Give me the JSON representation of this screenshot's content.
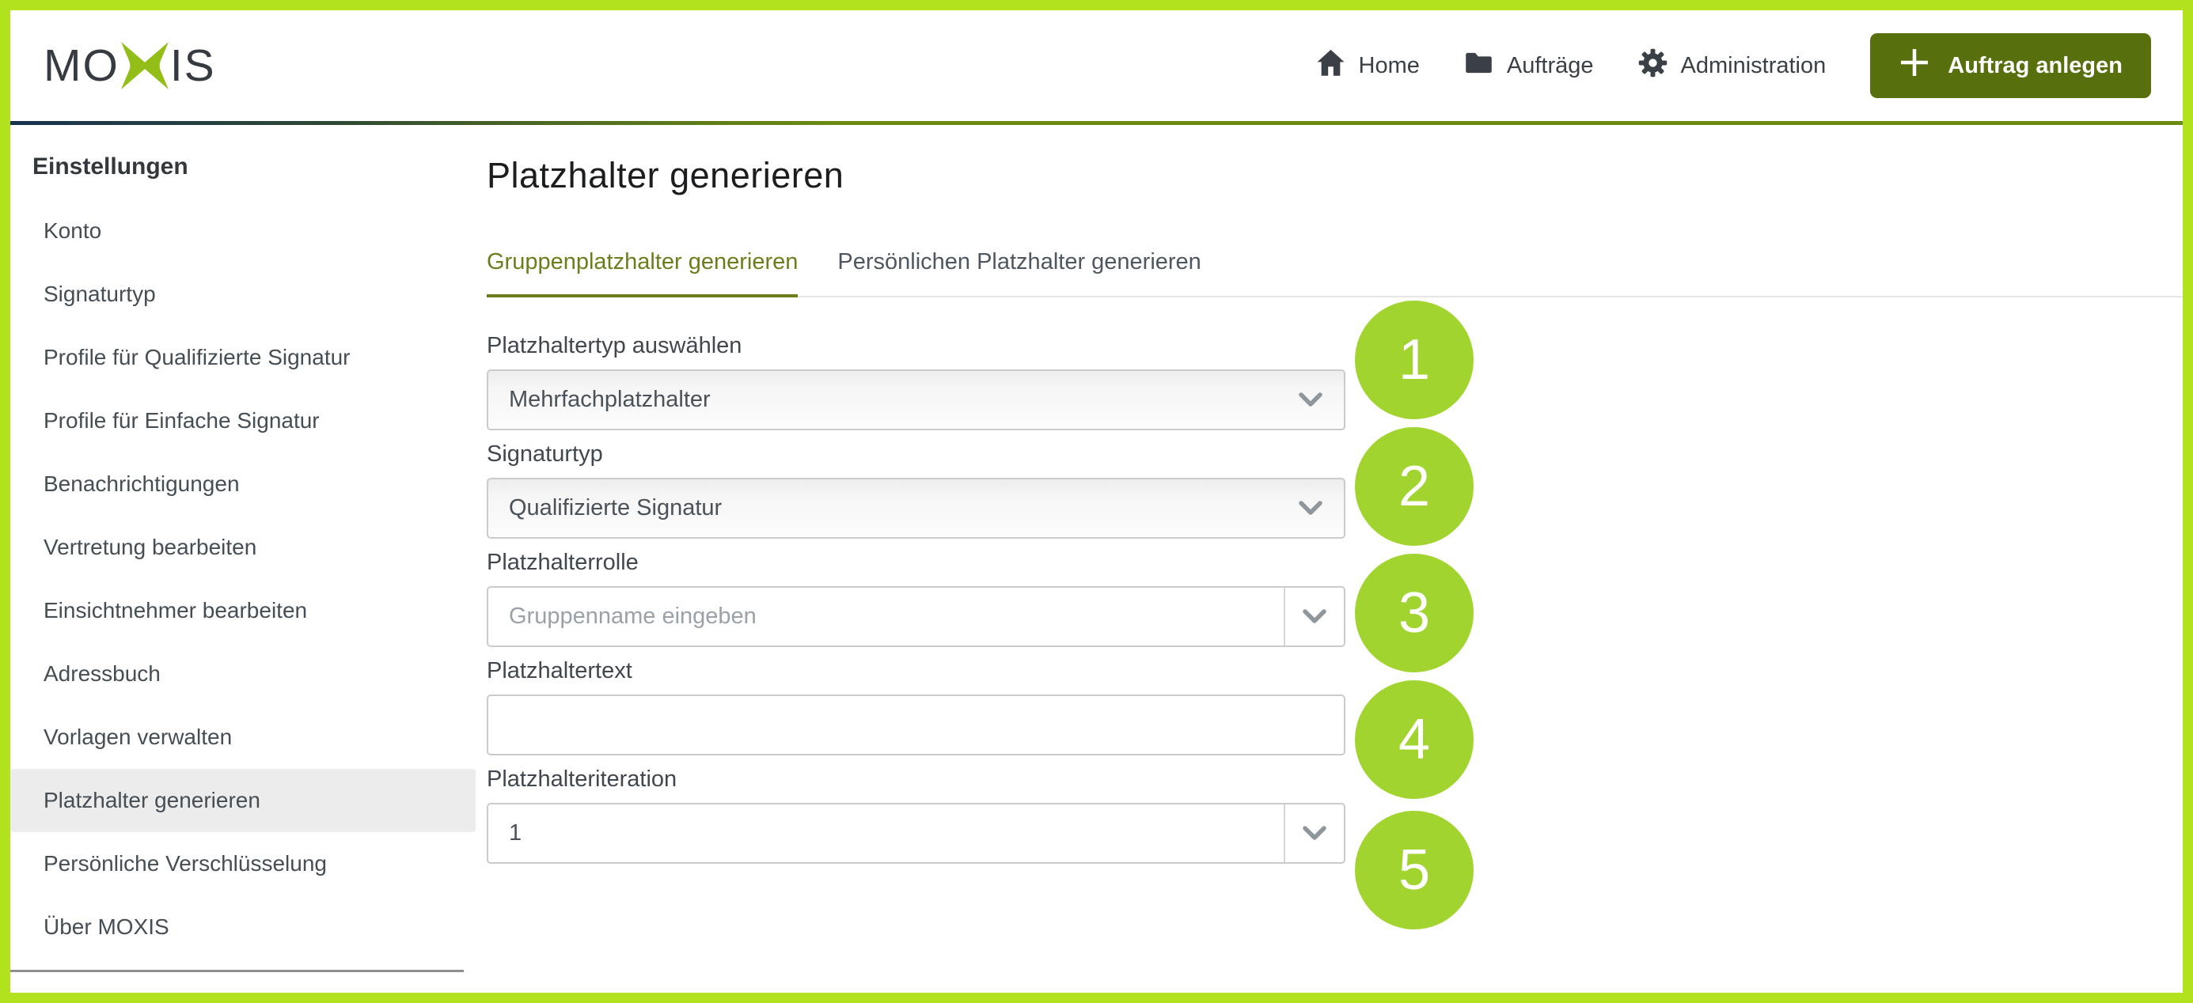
{
  "header": {
    "logo": {
      "left": "MO",
      "right": "IS",
      "icon": "moxis-x-icon"
    },
    "nav": [
      {
        "name": "home",
        "icon": "home-icon",
        "label": "Home"
      },
      {
        "name": "auftraege",
        "icon": "folder-icon",
        "label": "Aufträge"
      },
      {
        "name": "administration",
        "icon": "gear-icon",
        "label": "Administration"
      }
    ],
    "create_button": {
      "label": "Auftrag anlegen",
      "icon": "plus-icon"
    }
  },
  "sidebar": {
    "heading": "Einstellungen",
    "items": [
      {
        "name": "konto",
        "label": "Konto",
        "selected": false
      },
      {
        "name": "signaturtyp",
        "label": "Signaturtyp",
        "selected": false
      },
      {
        "name": "profile-qualifizierte-signatur",
        "label": "Profile für Qualifizierte Signatur",
        "selected": false
      },
      {
        "name": "profile-einfache-signatur",
        "label": "Profile für Einfache Signatur",
        "selected": false
      },
      {
        "name": "benachrichtigungen",
        "label": "Benachrichtigungen",
        "selected": false
      },
      {
        "name": "vertretung-bearbeiten",
        "label": "Vertretung bearbeiten",
        "selected": false
      },
      {
        "name": "einsichtnehmer-bearbeiten",
        "label": "Einsichtnehmer bearbeiten",
        "selected": false
      },
      {
        "name": "adressbuch",
        "label": "Adressbuch",
        "selected": false
      },
      {
        "name": "vorlagen-verwalten",
        "label": "Vorlagen verwalten",
        "selected": false
      },
      {
        "name": "platzhalter-generieren",
        "label": "Platzhalter generieren",
        "selected": true
      },
      {
        "name": "persoenliche-verschluesselung",
        "label": "Persönliche Verschlüsselung",
        "selected": false
      },
      {
        "name": "ueber-moxis",
        "label": "Über MOXIS",
        "selected": false
      }
    ]
  },
  "main": {
    "title": "Platzhalter generieren",
    "tabs": [
      {
        "name": "gruppenplatzhalter-generieren",
        "label": "Gruppenplatzhalter generieren",
        "active": true
      },
      {
        "name": "persoenlichen-platzhalter-generieren",
        "label": "Persönlichen Platzhalter generieren",
        "active": false
      }
    ],
    "fields": [
      {
        "name": "platzhaltertyp",
        "label": "Platzhaltertyp auswählen",
        "control": "select",
        "value": "Mehrfachplatzhalter",
        "placeholder": "",
        "badge": "1"
      },
      {
        "name": "signaturtyp",
        "label": "Signaturtyp",
        "control": "select",
        "value": "Qualifizierte Signatur",
        "placeholder": "",
        "badge": "2"
      },
      {
        "name": "platzhalterrolle",
        "label": "Platzhalterrolle",
        "control": "combobox",
        "value": "",
        "placeholder": "Gruppenname eingeben",
        "badge": "3"
      },
      {
        "name": "platzhaltertext",
        "label": "Platzhaltertext",
        "control": "text",
        "value": "",
        "placeholder": "",
        "badge": "4"
      },
      {
        "name": "platzhalteriteration",
        "label": "Platzhalteriteration",
        "control": "combobox",
        "value": "1",
        "placeholder": "",
        "badge": "5"
      }
    ]
  },
  "colors": {
    "frame_border": "#b2e21d",
    "badge_green": "#a2d42f",
    "button_olive": "#586f0e",
    "tab_active_olive": "#6e7d1b",
    "logo_x_green": "#93bd17",
    "header_rule_left": "#173350",
    "header_rule_right": "#6c8b12",
    "selected_item_bg": "#ececec"
  }
}
